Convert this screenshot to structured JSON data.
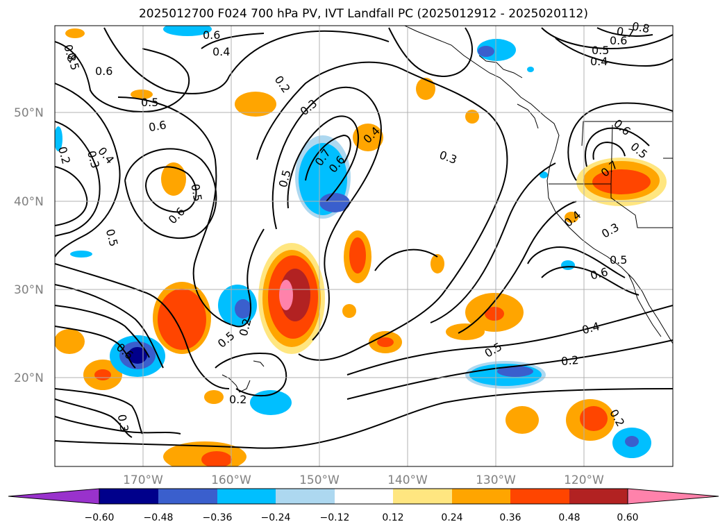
{
  "title": "2025012700 F024 700 hPa PV, IVT Landfall PC (2025012912 - 2025020112)",
  "map": {
    "lat_labels": [
      "50°N",
      "40°N",
      "30°N",
      "20°N"
    ],
    "lon_labels": [
      "170°W",
      "160°W",
      "150°W",
      "140°W",
      "130°W",
      "120°W"
    ],
    "contour_labels": [
      "0.8",
      "0.6",
      "0.6",
      "0.4",
      "0.2",
      "0.5",
      "0.6",
      "0.4",
      "0.3",
      "0.2",
      "0.5",
      "0.6",
      "0.5",
      "0.3",
      "0.5",
      "0.7",
      "0.6",
      "0.4",
      "0.3",
      "0.6",
      "0.5",
      "0.7",
      "0.4",
      "0.3",
      "0.5",
      "0.6",
      "0.5",
      "0.5",
      "0.2",
      "0.4",
      "0.2",
      "0.2",
      "0.3",
      "0.6",
      "0.2",
      "0.7",
      "0.8",
      "0.6",
      "0.5",
      "0.4",
      "0.5"
    ]
  },
  "colorbar": {
    "ticks": [
      "−0.60",
      "−0.48",
      "−0.36",
      "−0.24",
      "−0.12",
      "0.12",
      "0.24",
      "0.36",
      "0.48",
      "0.60"
    ],
    "colors": [
      "#9932cc",
      "#00008b",
      "#3a5fcd",
      "#00bfff",
      "#add8f0",
      "#ffffff",
      "#ffe680",
      "#ffa500",
      "#ff4500",
      "#b22222",
      "#ff82ab"
    ]
  }
}
